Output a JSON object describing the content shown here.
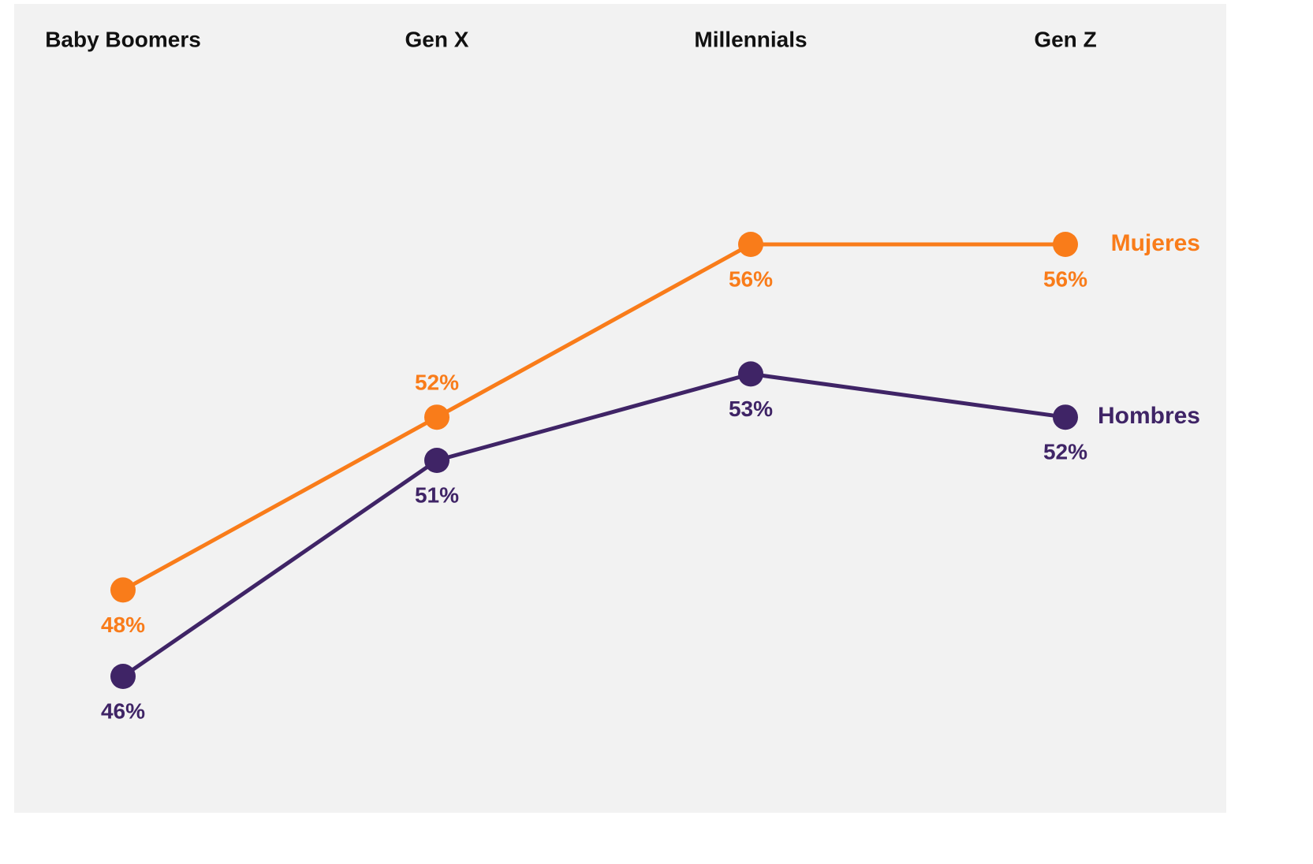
{
  "chart_data": {
    "type": "line",
    "title": "",
    "xlabel": "",
    "ylabel": "",
    "grid": false,
    "categories": [
      "Baby Boomers",
      "Gen X",
      "Millennials",
      "Gen Z"
    ],
    "ylim": [
      40,
      60
    ],
    "series": [
      {
        "name": "Mujeres",
        "color": "#f97c1a",
        "values": [
          48,
          52,
          56,
          56
        ],
        "labels": [
          "48%",
          "52%",
          "56%",
          "56%"
        ],
        "label_positions": [
          "below",
          "above",
          "below",
          "below"
        ]
      },
      {
        "name": "Hombres",
        "color": "#3f2466",
        "values": [
          46,
          51,
          53,
          52
        ],
        "labels": [
          "46%",
          "51%",
          "53%",
          "52%"
        ],
        "label_positions": [
          "below",
          "below",
          "below",
          "below"
        ]
      }
    ]
  }
}
